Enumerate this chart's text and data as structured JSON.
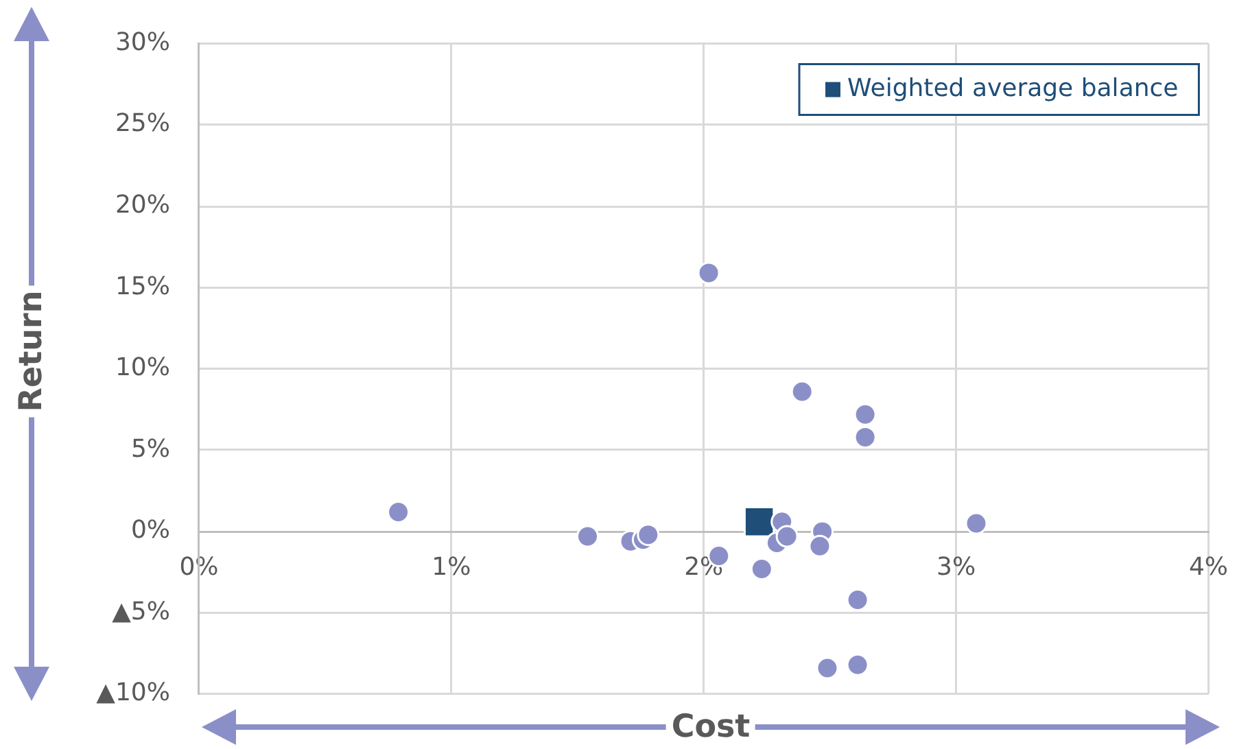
{
  "chart_data": {
    "type": "scatter",
    "xlabel": "Cost",
    "ylabel": "Return",
    "series": [
      {
        "color": "#8b8fc8",
        "marker": "circle",
        "x": [
          0.79,
          2.02,
          2.39,
          2.64,
          2.64,
          3.08,
          1.54,
          1.71,
          1.76,
          1.78,
          2.06,
          2.23,
          2.31,
          2.29,
          2.33,
          2.47,
          2.46,
          2.61,
          2.49,
          2.61
        ],
        "values": [
          1.2,
          15.9,
          8.6,
          7.2,
          5.8,
          0.5,
          -0.3,
          -0.6,
          -0.5,
          -0.2,
          -1.5,
          -2.3,
          0.6,
          -0.7,
          -0.3,
          0.0,
          -0.9,
          -4.2,
          -8.4,
          -8.2
        ]
      },
      {
        "name": "Weighted average balance",
        "color": "#1f4e79",
        "marker": "square",
        "x": [
          2.22
        ],
        "values": [
          0.6
        ]
      }
    ],
    "xlim": [
      0,
      4
    ],
    "xticks": [
      {
        "value": 0,
        "label": "0%"
      },
      {
        "value": 1,
        "label": "1%"
      },
      {
        "value": 2,
        "label": "2%"
      },
      {
        "value": 3,
        "label": "3%"
      },
      {
        "value": 4,
        "label": "4%"
      }
    ],
    "ylim": [
      -10,
      30
    ],
    "yticks": [
      {
        "value": -10,
        "label": "▲10%"
      },
      {
        "value": -5,
        "label": "▲5%"
      },
      {
        "value": 0,
        "label": "0%"
      },
      {
        "value": 5,
        "label": "5%"
      },
      {
        "value": 10,
        "label": "10%"
      },
      {
        "value": 15,
        "label": "15%"
      },
      {
        "value": 20,
        "label": "20%"
      },
      {
        "value": 25,
        "label": "25%"
      },
      {
        "value": 30,
        "label": "30%"
      }
    ],
    "grid": true,
    "legend": "top right"
  }
}
